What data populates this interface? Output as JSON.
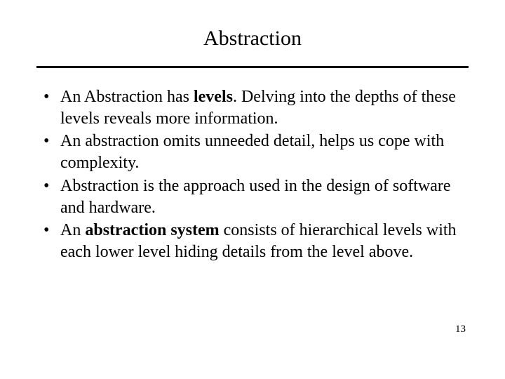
{
  "title": "Abstraction",
  "bullets": {
    "b1a": "An Abstraction has ",
    "b1b": "levels",
    "b1c": ". Delving into the depths of these levels reveals more information.",
    "b2": "An abstraction omits unneeded detail,  helps us cope with complexity.",
    "b3": "Abstraction is the approach used in  the design of software and hardware.",
    "b4a": "An ",
    "b4b": "abstraction system",
    "b4c": " consists of  hierarchical levels with each lower level hiding details from the level above."
  },
  "page_number": "13"
}
